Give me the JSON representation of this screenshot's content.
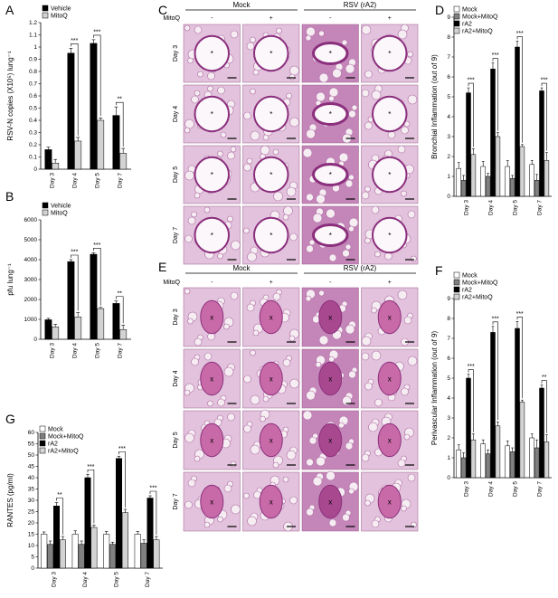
{
  "charts": [
    {
      "letter": "A",
      "type": "bar",
      "ylabel": "RSV-N copies (X10⁵) lung⁻¹",
      "ylim": [
        0,
        1.2
      ],
      "yticks": [
        "0",
        "0.1",
        "0.2",
        "0.3",
        "0.4",
        "0.5",
        "0.6",
        "0.7",
        "0.8",
        "0.9",
        "1",
        "1.1",
        "1.2"
      ],
      "categories": [
        "Day 3",
        "Day 4",
        "Day 5",
        "Day 7"
      ],
      "series": [
        {
          "name": "Vehicle",
          "color": "#000000",
          "values": [
            0.16,
            0.95,
            1.03,
            0.44
          ],
          "errors": [
            0.02,
            0.04,
            0.03,
            0.07
          ]
        },
        {
          "name": "MitoQ",
          "color": "#d3d3d3",
          "values": [
            0.05,
            0.23,
            0.4,
            0.13
          ],
          "errors": [
            0.03,
            0.03,
            0.02,
            0.04
          ]
        }
      ],
      "significance": [
        "",
        "***",
        "***",
        "**"
      ],
      "legend_position": "top-left"
    },
    {
      "letter": "B",
      "type": "bar",
      "ylabel": "pfu lung⁻¹",
      "ylim": [
        0,
        6000
      ],
      "yticks": [
        "0",
        "1000",
        "2000",
        "3000",
        "4000",
        "5000",
        "6000"
      ],
      "categories": [
        "Day 3",
        "Day 4",
        "Day 5",
        "Day 7"
      ],
      "series": [
        {
          "name": "Vehicle",
          "color": "#000000",
          "values": [
            980,
            3900,
            4270,
            1800
          ],
          "errors": [
            70,
            100,
            80,
            120
          ]
        },
        {
          "name": "MitoQ",
          "color": "#d3d3d3",
          "values": [
            620,
            1120,
            1540,
            490
          ],
          "errors": [
            130,
            220,
            60,
            220
          ]
        }
      ],
      "significance": [
        "",
        "***",
        "***",
        "**"
      ],
      "legend_position": "top-left"
    },
    {
      "letter": "D",
      "type": "bar",
      "ylabel": "Bronchial Inflammation (out of 9)",
      "ylim": [
        0,
        9
      ],
      "yticks": [
        "0",
        "1",
        "2",
        "3",
        "4",
        "5",
        "6",
        "7",
        "8",
        "9"
      ],
      "categories": [
        "Day 3",
        "Day 4",
        "Day 5",
        "Day 7"
      ],
      "series": [
        {
          "name": "Mock",
          "color": "#ffffff",
          "values": [
            1.4,
            1.5,
            1.5,
            1.6
          ],
          "errors": [
            0.3,
            0.25,
            0.3,
            0.2
          ]
        },
        {
          "name": "Mock+MitoQ",
          "color": "#808080",
          "values": [
            0.8,
            1.0,
            0.9,
            0.8
          ],
          "errors": [
            0.25,
            0.15,
            0.15,
            0.3
          ]
        },
        {
          "name": "rA2",
          "color": "#000000",
          "values": [
            5.2,
            6.4,
            7.5,
            5.3
          ],
          "errors": [
            0.25,
            0.3,
            0.3,
            0.15
          ]
        },
        {
          "name": "rA2+MitoQ",
          "color": "#d3d3d3",
          "values": [
            2.1,
            3.0,
            2.5,
            1.8
          ],
          "errors": [
            0.3,
            0.2,
            0.1,
            0.4
          ]
        }
      ],
      "significance": [
        "***",
        "***",
        "***",
        "***"
      ],
      "legend_position": "top-left"
    },
    {
      "letter": "F",
      "type": "bar",
      "ylabel": "Perivascular Inflammation (out of 9)",
      "ylim": [
        0,
        9
      ],
      "yticks": [
        "0",
        "1",
        "2",
        "3",
        "4",
        "5",
        "6",
        "7",
        "8",
        "9"
      ],
      "categories": [
        "Day 3",
        "Day 4",
        "Day 5",
        "Day 7"
      ],
      "series": [
        {
          "name": "Mock",
          "color": "#ffffff",
          "values": [
            1.4,
            1.7,
            1.6,
            2.0
          ],
          "errors": [
            0.25,
            0.2,
            0.25,
            0.2
          ]
        },
        {
          "name": "Mock+MitoQ",
          "color": "#808080",
          "values": [
            1.0,
            1.2,
            1.3,
            1.5
          ],
          "errors": [
            0.25,
            0.2,
            0.2,
            0.4
          ]
        },
        {
          "name": "rA2",
          "color": "#000000",
          "values": [
            5.0,
            7.3,
            7.5,
            4.5
          ],
          "errors": [
            0.2,
            0.3,
            0.35,
            0.15
          ]
        },
        {
          "name": "rA2+MitoQ",
          "color": "#d3d3d3",
          "values": [
            1.9,
            2.6,
            3.8,
            1.8
          ],
          "errors": [
            0.3,
            0.2,
            0.1,
            0.35
          ]
        }
      ],
      "significance": [
        "***",
        "***",
        "***",
        "**"
      ],
      "legend_position": "top-left"
    },
    {
      "letter": "G",
      "type": "bar",
      "ylabel": "RANTES (pg/ml)",
      "ylim": [
        0,
        60
      ],
      "yticks": [
        "0",
        "5",
        "10",
        "15",
        "20",
        "25",
        "30",
        "35",
        "40",
        "45",
        "50",
        "55",
        "60"
      ],
      "categories": [
        "Day 3",
        "Day 4",
        "Day 5",
        "Day 7"
      ],
      "series": [
        {
          "name": "Mock",
          "color": "#ffffff",
          "values": [
            15,
            15,
            15,
            15
          ],
          "errors": [
            1,
            1.5,
            1.2,
            1.2
          ]
        },
        {
          "name": "Mock+MitoQ",
          "color": "#808080",
          "values": [
            10.5,
            10.5,
            10.5,
            11
          ],
          "errors": [
            1.5,
            1.5,
            1,
            1.5
          ]
        },
        {
          "name": "rA2",
          "color": "#000000",
          "values": [
            27.5,
            40,
            48.5,
            31
          ],
          "errors": [
            1.5,
            1.5,
            1,
            1
          ]
        },
        {
          "name": "rA2+MitoQ",
          "color": "#d3d3d3",
          "values": [
            12.5,
            18,
            24.5,
            12.5
          ],
          "errors": [
            1.5,
            1,
            1.5,
            1.5
          ]
        }
      ],
      "significance": [
        "**",
        "***",
        "***",
        "***"
      ],
      "legend_position": "top-left"
    }
  ],
  "micrographs": [
    {
      "letter": "C",
      "groups": [
        "Mock",
        "RSV (rA2)"
      ],
      "mitoq_label": "MitoQ",
      "mitoq_signs": [
        "-",
        "+",
        "-",
        "+"
      ],
      "rows": [
        "Day 3",
        "Day 4",
        "Day 5",
        "Day 7"
      ],
      "marker": "*"
    },
    {
      "letter": "E",
      "groups": [
        "Mock",
        "RSV (rA2)"
      ],
      "mitoq_label": "MitoQ",
      "mitoq_signs": [
        "-",
        "+",
        "-",
        "+"
      ],
      "rows": [
        "Day 3",
        "Day 4",
        "Day 5",
        "Day 7"
      ],
      "marker": "x"
    }
  ]
}
